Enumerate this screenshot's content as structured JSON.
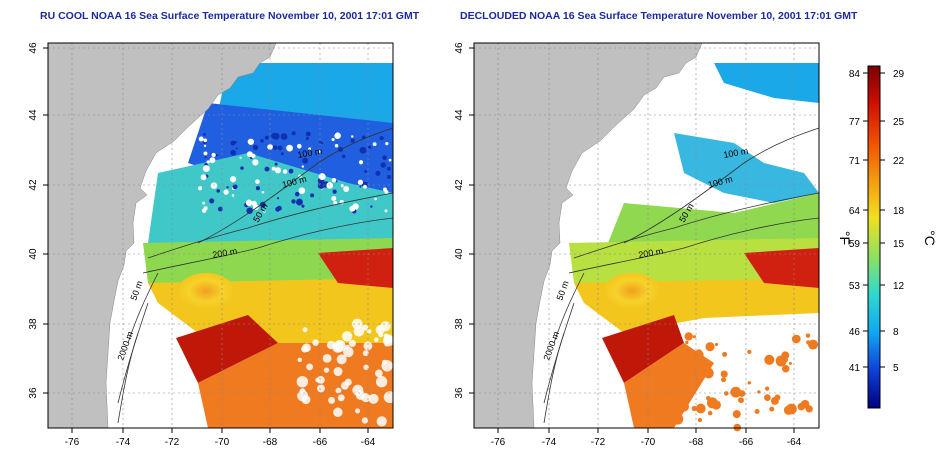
{
  "panels": [
    {
      "title": "RU COOL NOAA 16 Sea Surface Temperature November 10, 2001 17:01 GMT",
      "variant": "raw",
      "contour_labels": [
        "100 m",
        "100 m",
        "50 m",
        "200 m",
        "50 m",
        "2000 m"
      ]
    },
    {
      "title": "DECLOUDED NOAA 16 Sea Surface Temperature November 10, 2001 17:01 GMT",
      "variant": "declouded",
      "contour_labels": [
        "100 m",
        "100 m",
        "50 m",
        "200 m",
        "50 m",
        "2000 m"
      ]
    }
  ],
  "axes": {
    "x_ticks": [
      "-76",
      "-74",
      "-72",
      "-70",
      "-68",
      "-66",
      "-64"
    ],
    "y_ticks": [
      "36",
      "38",
      "40",
      "42",
      "44",
      "46"
    ]
  },
  "colorbar": {
    "f_unit": "°F",
    "c_unit": "°C",
    "f_ticks": [
      "84",
      "77",
      "71",
      "64",
      "59",
      "53",
      "46",
      "41"
    ],
    "c_ticks": [
      "29",
      "25",
      "22",
      "18",
      "15",
      "12",
      "8",
      "5"
    ],
    "colors": [
      "#7a0000",
      "#d01000",
      "#f05000",
      "#f59a10",
      "#f0e020",
      "#90e060",
      "#30d8d0",
      "#10a8f0",
      "#1040d8",
      "#000080"
    ]
  },
  "colors": {
    "land": "#c0c0c0",
    "title": "#1a2aa0",
    "contour": "#333333"
  }
}
